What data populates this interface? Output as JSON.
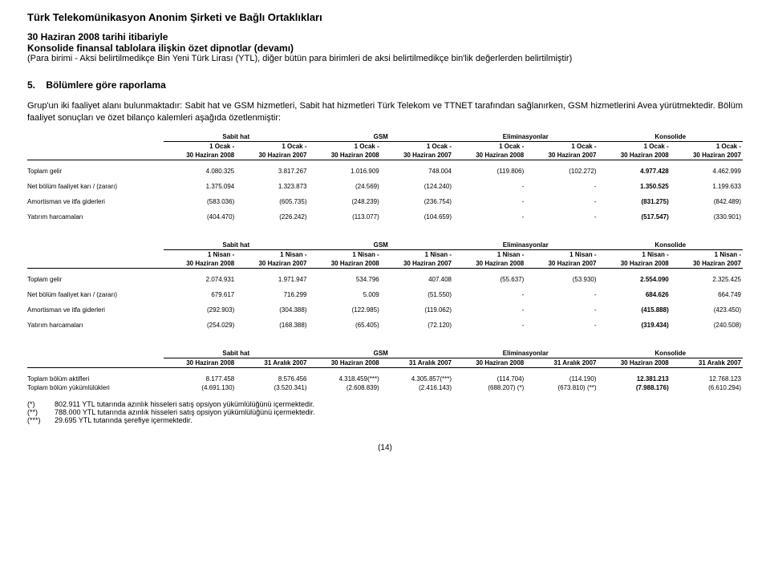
{
  "header": {
    "company": "Türk Telekomünikasyon Anonim Şirketi ve Bağlı Ortaklıkları",
    "date_line": "30 Haziran 2008 tarihi itibariyle",
    "subtitle": "Konsolide finansal tablolara ilişkin özet dipnotlar (devamı)",
    "unit_note": "(Para birimi - Aksi belirtilmedikçe Bin Yeni Türk Lirası (YTL), diğer bütün para birimleri de aksi belirtilmedikçe bin'lik değerlerden belirtilmiştir)"
  },
  "section": {
    "number": "5.",
    "title": "Bölümlere göre raporlama",
    "paragraph": "Grup'un iki faaliyet alanı bulunmaktadır: Sabit hat ve GSM hizmetleri, Sabit hat hizmetleri Türk Telekom ve TTNET tarafından sağlanırken, GSM hizmetlerini Avea yürütmektedir. Bölüm faaliyet sonuçları ve özet bilanço kalemleri aşağıda özetlenmiştir:"
  },
  "groups": [
    "Sabit hat",
    "GSM",
    "Eliminasyonlar",
    "Konsolide"
  ],
  "t1": {
    "period_top": "1 Ocak -",
    "h": [
      "30 Haziran 2008",
      "30 Haziran 2007",
      "30 Haziran 2008",
      "30 Haziran 2007",
      "30 Haziran 2008",
      "30 Haziran 2007",
      "30 Haziran 2008",
      "30 Haziran 2007"
    ],
    "rows": [
      {
        "label": "Toplam gelir",
        "v": [
          "4.080.325",
          "3.817.267",
          "1.016.909",
          "748.004",
          "(119.806)",
          "(102.272)",
          "4.977.428",
          "4.462.999"
        ]
      },
      {
        "label": "Net bölüm faaliyet karı / (zararı)",
        "v": [
          "1.375.094",
          "1.323.873",
          "(24.569)",
          "(124.240)",
          "-",
          "-",
          "1.350.525",
          "1.199.633"
        ]
      },
      {
        "label": "Amortisman ve itfa giderleri",
        "v": [
          "(583.036)",
          "(605.735)",
          "(248.239)",
          "(236.754)",
          "-",
          "-",
          "(831.275)",
          "(842.489)"
        ]
      },
      {
        "label": "Yatırım harcamaları",
        "v": [
          "(404.470)",
          "(226.242)",
          "(113.077)",
          "(104.659)",
          "-",
          "-",
          "(517.547)",
          "(330.901)"
        ]
      }
    ]
  },
  "t2": {
    "period_top": "1 Nisan -",
    "h": [
      "30 Haziran 2008",
      "30 Haziran 2007",
      "30 Haziran 2008",
      "30 Haziran 2007",
      "30 Haziran 2008",
      "30 Haziran 2007",
      "30 Haziran 2008",
      "30 Haziran 2007"
    ],
    "rows": [
      {
        "label": "Toplam gelir",
        "v": [
          "2.074.931",
          "1.971.947",
          "534.796",
          "407.408",
          "(55.637)",
          "(53.930)",
          "2.554.090",
          "2.325.425"
        ]
      },
      {
        "label": "Net bölüm faaliyet karı / (zararı)",
        "v": [
          "679.617",
          "716.299",
          "5.009",
          "(51.550)",
          "-",
          "-",
          "684.626",
          "664.749"
        ]
      },
      {
        "label": "Amortisman ve itfa giderleri",
        "v": [
          "(292.903)",
          "(304.388)",
          "(122.985)",
          "(119.062)",
          "-",
          "-",
          "(415.888)",
          "(423.450)"
        ]
      },
      {
        "label": "Yatırım harcamaları",
        "v": [
          "(254.029)",
          "(168.388)",
          "(65.405)",
          "(72.120)",
          "-",
          "-",
          "(319.434)",
          "(240.508)"
        ]
      }
    ]
  },
  "t3": {
    "h": [
      "30 Haziran 2008",
      "31 Aralık 2007",
      "30 Haziran 2008",
      "31 Aralık 2007",
      "30 Haziran 2008",
      "31 Aralık 2007",
      "30 Haziran 2008",
      "31 Aralık 2007"
    ],
    "rows": [
      {
        "label": "Toplam bölüm aktifleri",
        "v": [
          "8.177.458",
          "8.576.456",
          "4.318.459(***)",
          "4.305.857(***)",
          "(114.704)",
          "(114.190)",
          "12.381.213",
          "12.768.123"
        ]
      },
      {
        "label": "Toplam bölüm yükümlülükleri",
        "v": [
          "(4.691.130)",
          "(3.520.341)",
          "(2.608.839)",
          "(2.416.143)",
          "(688.207) (*)",
          "(673.810) (**)",
          "(7.988.176)",
          "(6.610.294)"
        ]
      }
    ]
  },
  "footnotes": [
    {
      "mark": "(*)",
      "text": "802.911 YTL tutarında azınlık hisseleri satış opsiyon yükümlülüğünü içermektedir."
    },
    {
      "mark": "(**)",
      "text": "788.000 YTL tutarında azınlık hisseleri satış opsiyon yükümlülüğünü içermektedir."
    },
    {
      "mark": "(***)",
      "text": "29.695 YTL tutarında şerefiye içermektedir."
    }
  ],
  "page_number": "(14)"
}
